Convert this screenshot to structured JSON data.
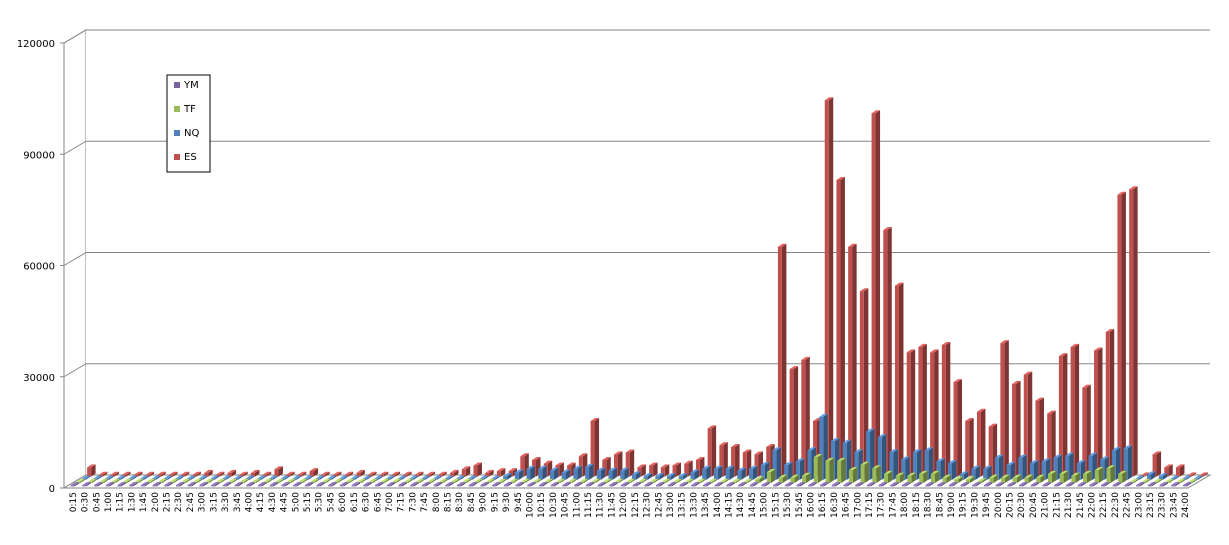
{
  "chart_data": {
    "type": "bar",
    "title": "",
    "xlabel": "",
    "ylabel": "",
    "ylim": [
      0,
      120000
    ],
    "yticks": [
      "0",
      "30000",
      "60000",
      "90000",
      "120000"
    ],
    "grid": true,
    "legend_position": "top-left",
    "categories": [
      "0:15",
      "0:30",
      "0:45",
      "1:00",
      "1:15",
      "1:30",
      "1:45",
      "2:00",
      "2:15",
      "2:30",
      "2:45",
      "3:00",
      "3:15",
      "3:30",
      "3:45",
      "4:00",
      "4:15",
      "4:30",
      "4:45",
      "5:00",
      "5:15",
      "5:30",
      "5:45",
      "6:00",
      "6:15",
      "6:30",
      "6:45",
      "7:00",
      "7:15",
      "7:30",
      "7:45",
      "8:00",
      "8:15",
      "8:30",
      "8:45",
      "9:00",
      "9:15",
      "9:30",
      "9:45",
      "10:00",
      "10:15",
      "10:30",
      "10:45",
      "11:00",
      "11:15",
      "11:30",
      "11:45",
      "12:00",
      "12:15",
      "12:30",
      "12:45",
      "13:00",
      "13:15",
      "13:30",
      "13:45",
      "14:00",
      "14:15",
      "14:30",
      "14:45",
      "15:00",
      "15:15",
      "15:30",
      "15:45",
      "16:00",
      "16:15",
      "16:30",
      "16:45",
      "17:00",
      "17:15",
      "17:30",
      "17:45",
      "18:00",
      "18:15",
      "18:30",
      "18:45",
      "19:00",
      "19:15",
      "19:30",
      "19:45",
      "20:00",
      "20:15",
      "20:30",
      "20:45",
      "21:00",
      "21:15",
      "21:30",
      "21:45",
      "22:00",
      "22:15",
      "22:30",
      "22:45",
      "23:00",
      "23:15",
      "23:30",
      "23:45",
      "24:00"
    ],
    "series": [
      {
        "name": "YM",
        "color": "#7b62a3",
        "values": [
          0,
          0,
          0,
          0,
          0,
          0,
          0,
          0,
          0,
          0,
          0,
          0,
          0,
          0,
          0,
          0,
          0,
          0,
          0,
          0,
          0,
          0,
          0,
          0,
          0,
          0,
          0,
          0,
          0,
          0,
          0,
          0,
          0,
          0,
          0,
          0,
          0,
          0,
          0,
          0,
          0,
          0,
          0,
          0,
          0,
          0,
          0,
          0,
          0,
          0,
          0,
          0,
          0,
          0,
          0,
          0,
          0,
          0,
          0,
          0,
          0,
          0,
          0,
          0,
          0,
          0,
          0,
          0,
          0,
          0,
          0,
          0,
          0,
          0,
          0,
          0,
          0,
          0,
          0,
          0,
          0,
          0,
          0,
          0,
          0,
          0,
          0,
          0,
          0,
          0,
          0,
          0,
          0,
          0,
          0,
          0
        ]
      },
      {
        "name": "TF",
        "color": "#9bbb59",
        "values": [
          0,
          0,
          0,
          0,
          0,
          0,
          0,
          0,
          0,
          0,
          0,
          0,
          0,
          0,
          0,
          0,
          0,
          0,
          0,
          0,
          0,
          0,
          0,
          0,
          0,
          0,
          0,
          0,
          0,
          0,
          0,
          0,
          0,
          0,
          0,
          0,
          0,
          0,
          0,
          0,
          0,
          0,
          0,
          0,
          0,
          0,
          0,
          0,
          0,
          0,
          0,
          0,
          0,
          0,
          0,
          0,
          0,
          0,
          1000,
          3000,
          1500,
          1500,
          2000,
          7000,
          6000,
          6000,
          3500,
          5000,
          4000,
          2500,
          2000,
          2000,
          2500,
          2500,
          1500,
          1000,
          1000,
          500,
          1500,
          1500,
          1500,
          1500,
          1500,
          2500,
          2500,
          2000,
          2500,
          3500,
          4000,
          2500,
          0,
          0,
          0,
          0,
          0,
          0
        ]
      },
      {
        "name": "NQ",
        "color": "#4f81bd",
        "values": [
          0,
          0,
          0,
          0,
          0,
          0,
          0,
          0,
          0,
          0,
          0,
          0,
          0,
          0,
          0,
          0,
          0,
          0,
          0,
          0,
          0,
          0,
          0,
          0,
          0,
          0,
          0,
          0,
          0,
          0,
          0,
          0,
          0,
          0,
          0,
          0,
          1000,
          2000,
          3000,
          3000,
          2500,
          2000,
          3000,
          3500,
          2500,
          2500,
          2500,
          1500,
          1000,
          1000,
          1000,
          1000,
          2000,
          3000,
          3000,
          3000,
          2500,
          3000,
          4000,
          8000,
          4000,
          5000,
          8000,
          17000,
          10500,
          10000,
          7500,
          13000,
          11500,
          7500,
          5500,
          7500,
          8000,
          5000,
          4500,
          1500,
          3000,
          3000,
          6000,
          4000,
          6000,
          4500,
          5000,
          6000,
          6500,
          4500,
          6500,
          5500,
          8000,
          8500,
          0,
          1500,
          1000,
          0,
          0,
          0
        ]
      },
      {
        "name": "ES",
        "color": "#c0504d",
        "values": [
          2500,
          500,
          500,
          500,
          500,
          500,
          500,
          500,
          500,
          500,
          1000,
          500,
          1000,
          500,
          1000,
          500,
          2000,
          500,
          500,
          1500,
          500,
          500,
          500,
          1000,
          500,
          500,
          500,
          500,
          500,
          500,
          500,
          1000,
          2000,
          3000,
          1000,
          1500,
          1500,
          5500,
          4500,
          3500,
          3000,
          3000,
          5500,
          15000,
          4500,
          6000,
          6500,
          2500,
          3000,
          2500,
          3000,
          3500,
          4500,
          13000,
          8500,
          8000,
          6500,
          6000,
          8000,
          62000,
          29000,
          31500,
          15000,
          101500,
          80000,
          62000,
          50000,
          98000,
          66500,
          51500,
          33500,
          35000,
          33500,
          35500,
          25500,
          15000,
          17500,
          13500,
          36000,
          25000,
          27500,
          20500,
          17000,
          32500,
          35000,
          24000,
          34000,
          39000,
          76000,
          77500,
          0,
          6000,
          2500,
          2500,
          0,
          0
        ]
      }
    ]
  }
}
